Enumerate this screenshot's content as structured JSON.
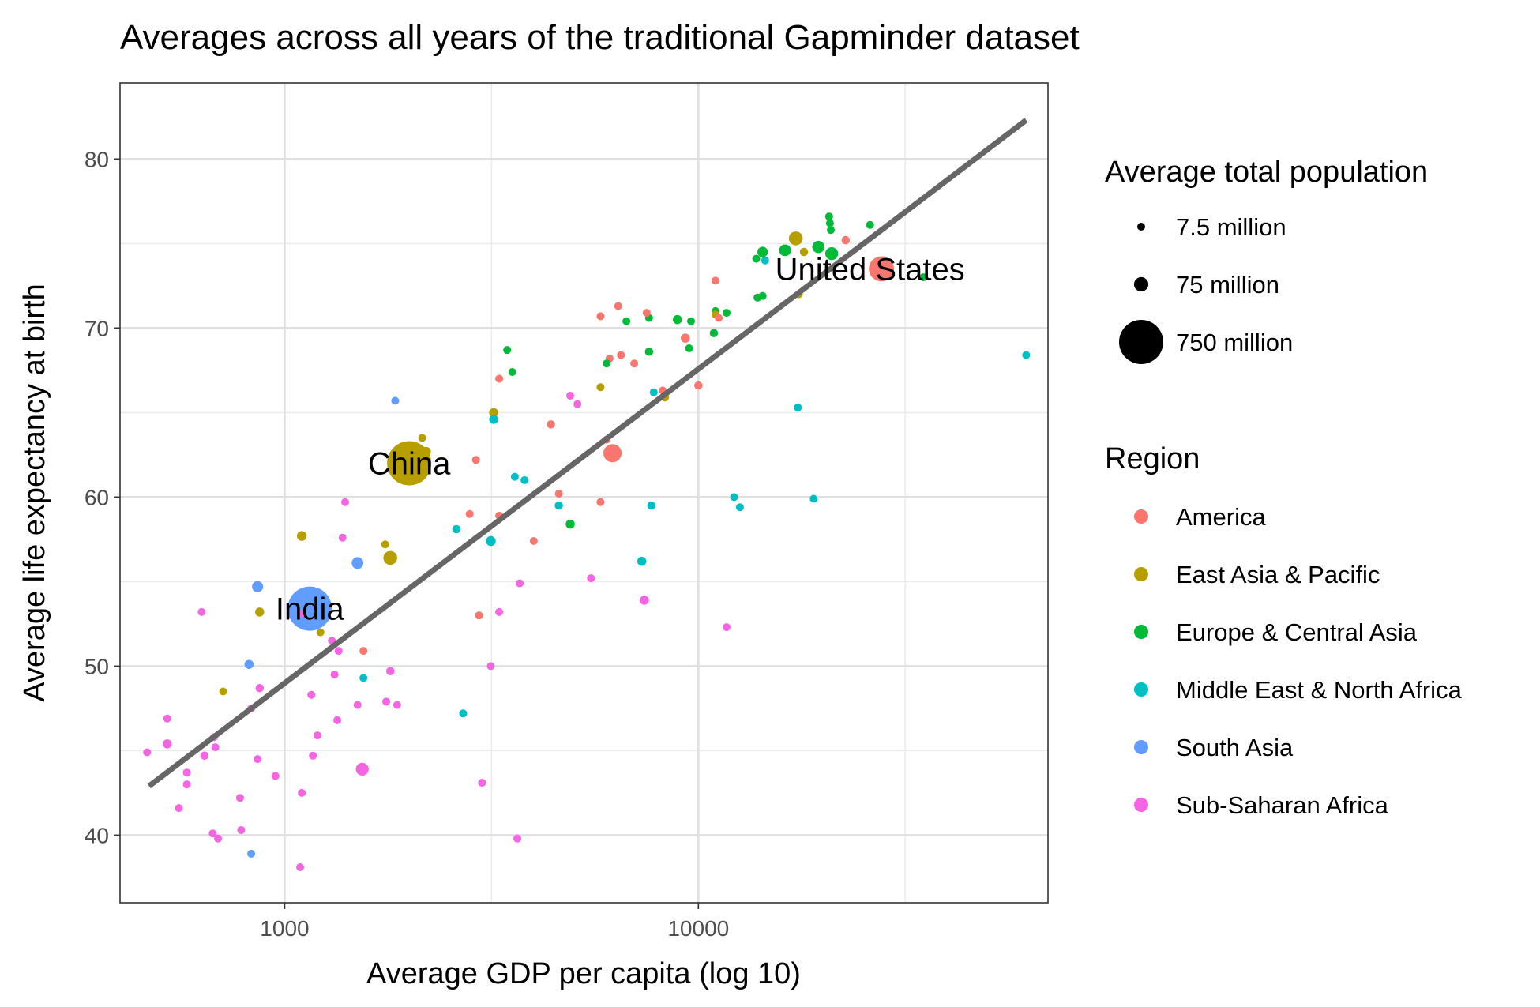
{
  "chart_data": {
    "type": "scatter",
    "title": "Averages across all years of the traditional Gapminder dataset",
    "xlabel": "Average GDP per capita (log 10)",
    "ylabel": "Average life expectancy at birth",
    "x_scale": "log10",
    "xlim": [
      400,
      70000
    ],
    "ylim": [
      36,
      84.5
    ],
    "x_ticks": [
      1000,
      10000
    ],
    "x_tick_labels": [
      "1000",
      "10000"
    ],
    "y_ticks": [
      40,
      50,
      60,
      70,
      80
    ],
    "y_tick_labels": [
      "40",
      "50",
      "60",
      "70",
      "80"
    ],
    "grid": true,
    "trend_line": {
      "x": [
        470,
        62000
      ],
      "y": [
        42.9,
        82.3
      ],
      "color": "#666666"
    },
    "size_legend": {
      "title": "Average total population",
      "entries": [
        {
          "label": "7.5 million",
          "population_millions": 7.5
        },
        {
          "label": "75 million",
          "population_millions": 75
        },
        {
          "label": "750 million",
          "population_millions": 750
        }
      ]
    },
    "color_legend": {
      "title": "Region",
      "entries": [
        {
          "label": "America",
          "color": "#F8766D"
        },
        {
          "label": "East Asia & Pacific",
          "color": "#B79F00"
        },
        {
          "label": "Europe & Central Asia",
          "color": "#00BA38"
        },
        {
          "label": "Middle East & North Africa",
          "color": "#00BFC4"
        },
        {
          "label": "South Asia",
          "color": "#619CFF"
        },
        {
          "label": "Sub-Saharan Africa",
          "color": "#F564E3"
        }
      ]
    },
    "annotations": [
      {
        "text": "China",
        "x": 2000,
        "y": 62
      },
      {
        "text": "India",
        "x": 1150,
        "y": 53.4
      },
      {
        "text": "United States",
        "x": 26000,
        "y": 73.5
      }
    ],
    "points": [
      {
        "x": 27700,
        "y": 73.5,
        "pop": 230,
        "region": "America"
      },
      {
        "x": 22700,
        "y": 75.2,
        "pop": 25,
        "region": "America"
      },
      {
        "x": 6200,
        "y": 62.6,
        "pop": 120,
        "region": "America"
      },
      {
        "x": 9300,
        "y": 69.4,
        "pop": 30,
        "region": "America"
      },
      {
        "x": 10000,
        "y": 66.6,
        "pop": 25,
        "region": "America"
      },
      {
        "x": 8200,
        "y": 66.3,
        "pop": 15,
        "region": "America"
      },
      {
        "x": 4400,
        "y": 64.3,
        "pop": 25,
        "region": "America"
      },
      {
        "x": 5800,
        "y": 59.7,
        "pop": 20,
        "region": "America"
      },
      {
        "x": 6000,
        "y": 63.4,
        "pop": 15,
        "region": "America"
      },
      {
        "x": 6100,
        "y": 68.2,
        "pop": 12,
        "region": "America"
      },
      {
        "x": 6500,
        "y": 68.4,
        "pop": 8,
        "region": "America"
      },
      {
        "x": 7000,
        "y": 67.9,
        "pop": 14,
        "region": "America"
      },
      {
        "x": 5800,
        "y": 70.7,
        "pop": 8,
        "region": "America"
      },
      {
        "x": 6400,
        "y": 71.3,
        "pop": 12,
        "region": "America"
      },
      {
        "x": 7500,
        "y": 70.9,
        "pop": 7,
        "region": "America"
      },
      {
        "x": 11000,
        "y": 72.8,
        "pop": 7,
        "region": "America"
      },
      {
        "x": 11200,
        "y": 70.6,
        "pop": 6,
        "region": "America"
      },
      {
        "x": 3300,
        "y": 67.0,
        "pop": 8,
        "region": "America"
      },
      {
        "x": 2900,
        "y": 62.2,
        "pop": 9,
        "region": "America"
      },
      {
        "x": 2800,
        "y": 59.0,
        "pop": 7,
        "region": "America"
      },
      {
        "x": 3300,
        "y": 58.9,
        "pop": 6,
        "region": "America"
      },
      {
        "x": 4000,
        "y": 57.4,
        "pop": 9,
        "region": "America"
      },
      {
        "x": 4600,
        "y": 60.2,
        "pop": 8,
        "region": "America"
      },
      {
        "x": 2950,
        "y": 53.0,
        "pop": 10,
        "region": "America"
      },
      {
        "x": 1550,
        "y": 50.9,
        "pop": 10,
        "region": "America"
      },
      {
        "x": 2000,
        "y": 62.0,
        "pop": 1000,
        "region": "East Asia & Pacific"
      },
      {
        "x": 17200,
        "y": 75.3,
        "pop": 70,
        "region": "East Asia & Pacific"
      },
      {
        "x": 18000,
        "y": 74.5,
        "pop": 25,
        "region": "East Asia & Pacific"
      },
      {
        "x": 17500,
        "y": 72.0,
        "pop": 8,
        "region": "East Asia & Pacific"
      },
      {
        "x": 11000,
        "y": 70.8,
        "pop": 8,
        "region": "East Asia & Pacific"
      },
      {
        "x": 8300,
        "y": 65.9,
        "pop": 25,
        "region": "East Asia & Pacific"
      },
      {
        "x": 5800,
        "y": 66.5,
        "pop": 18,
        "region": "East Asia & Pacific"
      },
      {
        "x": 3200,
        "y": 65.0,
        "pop": 30,
        "region": "East Asia & Pacific"
      },
      {
        "x": 2150,
        "y": 63.5,
        "pop": 20,
        "region": "East Asia & Pacific"
      },
      {
        "x": 2200,
        "y": 62.7,
        "pop": 30,
        "region": "East Asia & Pacific"
      },
      {
        "x": 1800,
        "y": 56.4,
        "pop": 70,
        "region": "East Asia & Pacific"
      },
      {
        "x": 1750,
        "y": 57.2,
        "pop": 8,
        "region": "East Asia & Pacific"
      },
      {
        "x": 1100,
        "y": 57.7,
        "pop": 35,
        "region": "East Asia & Pacific"
      },
      {
        "x": 870,
        "y": 53.2,
        "pop": 30,
        "region": "East Asia & Pacific"
      },
      {
        "x": 1220,
        "y": 52.0,
        "pop": 12,
        "region": "East Asia & Pacific"
      },
      {
        "x": 710,
        "y": 48.5,
        "pop": 15,
        "region": "East Asia & Pacific"
      },
      {
        "x": 20700,
        "y": 76.6,
        "pop": 8,
        "region": "Europe & Central Asia"
      },
      {
        "x": 20800,
        "y": 76.2,
        "pop": 10,
        "region": "Europe & Central Asia"
      },
      {
        "x": 20900,
        "y": 75.8,
        "pop": 15,
        "region": "Europe & Central Asia"
      },
      {
        "x": 26000,
        "y": 76.1,
        "pop": 15,
        "region": "Europe & Central Asia"
      },
      {
        "x": 19500,
        "y": 74.8,
        "pop": 55,
        "region": "Europe & Central Asia"
      },
      {
        "x": 21000,
        "y": 74.4,
        "pop": 60,
        "region": "Europe & Central Asia"
      },
      {
        "x": 16200,
        "y": 74.6,
        "pop": 50,
        "region": "Europe & Central Asia"
      },
      {
        "x": 14300,
        "y": 74.5,
        "pop": 40,
        "region": "Europe & Central Asia"
      },
      {
        "x": 13800,
        "y": 74.1,
        "pop": 15,
        "region": "Europe & Central Asia"
      },
      {
        "x": 14300,
        "y": 71.9,
        "pop": 20,
        "region": "Europe & Central Asia"
      },
      {
        "x": 13900,
        "y": 71.8,
        "pop": 10,
        "region": "Europe & Central Asia"
      },
      {
        "x": 11700,
        "y": 70.9,
        "pop": 15,
        "region": "Europe & Central Asia"
      },
      {
        "x": 11000,
        "y": 71.0,
        "pop": 15,
        "region": "Europe & Central Asia"
      },
      {
        "x": 10900,
        "y": 69.7,
        "pop": 25,
        "region": "Europe & Central Asia"
      },
      {
        "x": 8900,
        "y": 70.5,
        "pop": 30,
        "region": "Europe & Central Asia"
      },
      {
        "x": 9600,
        "y": 70.4,
        "pop": 15,
        "region": "Europe & Central Asia"
      },
      {
        "x": 7600,
        "y": 68.6,
        "pop": 25,
        "region": "Europe & Central Asia"
      },
      {
        "x": 9500,
        "y": 68.8,
        "pop": 15,
        "region": "Europe & Central Asia"
      },
      {
        "x": 6700,
        "y": 70.4,
        "pop": 15,
        "region": "Europe & Central Asia"
      },
      {
        "x": 7600,
        "y": 70.6,
        "pop": 8,
        "region": "Europe & Central Asia"
      },
      {
        "x": 6000,
        "y": 67.9,
        "pop": 9,
        "region": "Europe & Central Asia"
      },
      {
        "x": 3450,
        "y": 68.7,
        "pop": 12,
        "region": "Europe & Central Asia"
      },
      {
        "x": 3550,
        "y": 67.4,
        "pop": 12,
        "region": "Europe & Central Asia"
      },
      {
        "x": 4900,
        "y": 58.4,
        "pop": 30,
        "region": "Europe & Central Asia"
      },
      {
        "x": 35000,
        "y": 73.0,
        "pop": 5,
        "region": "Europe & Central Asia"
      },
      {
        "x": 62000,
        "y": 68.4,
        "pop": 6,
        "region": "Middle East & North Africa"
      },
      {
        "x": 17400,
        "y": 65.3,
        "pop": 6,
        "region": "Middle East & North Africa"
      },
      {
        "x": 19000,
        "y": 59.9,
        "pop": 20,
        "region": "Middle East & North Africa"
      },
      {
        "x": 12200,
        "y": 60.0,
        "pop": 12,
        "region": "Middle East & North Africa"
      },
      {
        "x": 12600,
        "y": 59.4,
        "pop": 9,
        "region": "Middle East & North Africa"
      },
      {
        "x": 7700,
        "y": 59.5,
        "pop": 25,
        "region": "Middle East & North Africa"
      },
      {
        "x": 7300,
        "y": 56.2,
        "pop": 30,
        "region": "Middle East & North Africa"
      },
      {
        "x": 7800,
        "y": 66.2,
        "pop": 15,
        "region": "Middle East & North Africa"
      },
      {
        "x": 14500,
        "y": 74.0,
        "pop": 6,
        "region": "Middle East & North Africa"
      },
      {
        "x": 3200,
        "y": 64.6,
        "pop": 30,
        "region": "Middle East & North Africa"
      },
      {
        "x": 3600,
        "y": 61.2,
        "pop": 15,
        "region": "Middle East & North Africa"
      },
      {
        "x": 3800,
        "y": 61.0,
        "pop": 10,
        "region": "Middle East & North Africa"
      },
      {
        "x": 4600,
        "y": 59.5,
        "pop": 25,
        "region": "Middle East & North Africa"
      },
      {
        "x": 2600,
        "y": 58.1,
        "pop": 25,
        "region": "Middle East & North Africa"
      },
      {
        "x": 3150,
        "y": 57.4,
        "pop": 35,
        "region": "Middle East & North Africa"
      },
      {
        "x": 1550,
        "y": 49.3,
        "pop": 15,
        "region": "Middle East & North Africa"
      },
      {
        "x": 2700,
        "y": 47.2,
        "pop": 8,
        "region": "Middle East & North Africa"
      },
      {
        "x": 1150,
        "y": 53.4,
        "pop": 800,
        "region": "South Asia"
      },
      {
        "x": 1500,
        "y": 56.1,
        "pop": 50,
        "region": "South Asia"
      },
      {
        "x": 860,
        "y": 54.7,
        "pop": 45,
        "region": "South Asia"
      },
      {
        "x": 1850,
        "y": 65.7,
        "pop": 20,
        "region": "South Asia"
      },
      {
        "x": 820,
        "y": 50.1,
        "pop": 30,
        "region": "South Asia"
      },
      {
        "x": 830,
        "y": 38.9,
        "pop": 20,
        "region": "South Asia"
      },
      {
        "x": 1540,
        "y": 43.9,
        "pop": 60,
        "region": "Sub-Saharan Africa"
      },
      {
        "x": 7400,
        "y": 53.9,
        "pop": 30,
        "region": "Sub-Saharan Africa"
      },
      {
        "x": 11700,
        "y": 52.3,
        "pop": 8,
        "region": "Sub-Saharan Africa"
      },
      {
        "x": 4900,
        "y": 66.0,
        "pop": 6,
        "region": "Sub-Saharan Africa"
      },
      {
        "x": 5100,
        "y": 65.5,
        "pop": 7,
        "region": "Sub-Saharan Africa"
      },
      {
        "x": 5500,
        "y": 55.2,
        "pop": 8,
        "region": "Sub-Saharan Africa"
      },
      {
        "x": 3700,
        "y": 54.9,
        "pop": 7,
        "region": "Sub-Saharan Africa"
      },
      {
        "x": 3300,
        "y": 53.2,
        "pop": 8,
        "region": "Sub-Saharan Africa"
      },
      {
        "x": 3150,
        "y": 50.0,
        "pop": 6,
        "region": "Sub-Saharan Africa"
      },
      {
        "x": 3000,
        "y": 43.1,
        "pop": 6,
        "region": "Sub-Saharan Africa"
      },
      {
        "x": 3650,
        "y": 39.8,
        "pop": 15,
        "region": "Sub-Saharan Africa"
      },
      {
        "x": 1400,
        "y": 59.7,
        "pop": 7,
        "region": "Sub-Saharan Africa"
      },
      {
        "x": 1380,
        "y": 57.6,
        "pop": 6,
        "region": "Sub-Saharan Africa"
      },
      {
        "x": 1100,
        "y": 53.1,
        "pop": 12,
        "region": "Sub-Saharan Africa"
      },
      {
        "x": 1300,
        "y": 51.5,
        "pop": 8,
        "region": "Sub-Saharan Africa"
      },
      {
        "x": 1350,
        "y": 50.9,
        "pop": 10,
        "region": "Sub-Saharan Africa"
      },
      {
        "x": 1800,
        "y": 49.7,
        "pop": 25,
        "region": "Sub-Saharan Africa"
      },
      {
        "x": 1320,
        "y": 49.5,
        "pop": 20,
        "region": "Sub-Saharan Africa"
      },
      {
        "x": 870,
        "y": 48.7,
        "pop": 25,
        "region": "Sub-Saharan Africa"
      },
      {
        "x": 1160,
        "y": 48.3,
        "pop": 12,
        "region": "Sub-Saharan Africa"
      },
      {
        "x": 1760,
        "y": 47.9,
        "pop": 20,
        "region": "Sub-Saharan Africa"
      },
      {
        "x": 1870,
        "y": 47.7,
        "pop": 20,
        "region": "Sub-Saharan Africa"
      },
      {
        "x": 1500,
        "y": 47.7,
        "pop": 15,
        "region": "Sub-Saharan Africa"
      },
      {
        "x": 830,
        "y": 47.5,
        "pop": 20,
        "region": "Sub-Saharan Africa"
      },
      {
        "x": 1340,
        "y": 46.8,
        "pop": 15,
        "region": "Sub-Saharan Africa"
      },
      {
        "x": 1200,
        "y": 45.9,
        "pop": 15,
        "region": "Sub-Saharan Africa"
      },
      {
        "x": 675,
        "y": 45.8,
        "pop": 12,
        "region": "Sub-Saharan Africa"
      },
      {
        "x": 680,
        "y": 45.2,
        "pop": 20,
        "region": "Sub-Saharan Africa"
      },
      {
        "x": 640,
        "y": 44.7,
        "pop": 25,
        "region": "Sub-Saharan Africa"
      },
      {
        "x": 860,
        "y": 44.5,
        "pop": 20,
        "region": "Sub-Saharan Africa"
      },
      {
        "x": 1170,
        "y": 44.7,
        "pop": 15,
        "region": "Sub-Saharan Africa"
      },
      {
        "x": 520,
        "y": 46.9,
        "pop": 12,
        "region": "Sub-Saharan Africa"
      },
      {
        "x": 520,
        "y": 45.4,
        "pop": 30,
        "region": "Sub-Saharan Africa"
      },
      {
        "x": 465,
        "y": 44.9,
        "pop": 15,
        "region": "Sub-Saharan Africa"
      },
      {
        "x": 580,
        "y": 43.7,
        "pop": 20,
        "region": "Sub-Saharan Africa"
      },
      {
        "x": 950,
        "y": 43.5,
        "pop": 15,
        "region": "Sub-Saharan Africa"
      },
      {
        "x": 580,
        "y": 43.0,
        "pop": 15,
        "region": "Sub-Saharan Africa"
      },
      {
        "x": 1100,
        "y": 42.5,
        "pop": 15,
        "region": "Sub-Saharan Africa"
      },
      {
        "x": 780,
        "y": 42.2,
        "pop": 20,
        "region": "Sub-Saharan Africa"
      },
      {
        "x": 555,
        "y": 41.6,
        "pop": 20,
        "region": "Sub-Saharan Africa"
      },
      {
        "x": 785,
        "y": 40.3,
        "pop": 15,
        "region": "Sub-Saharan Africa"
      },
      {
        "x": 670,
        "y": 40.1,
        "pop": 12,
        "region": "Sub-Saharan Africa"
      },
      {
        "x": 690,
        "y": 39.8,
        "pop": 20,
        "region": "Sub-Saharan Africa"
      },
      {
        "x": 1090,
        "y": 38.1,
        "pop": 15,
        "region": "Sub-Saharan Africa"
      },
      {
        "x": 630,
        "y": 53.2,
        "pop": 20,
        "region": "Sub-Saharan Africa"
      }
    ]
  }
}
